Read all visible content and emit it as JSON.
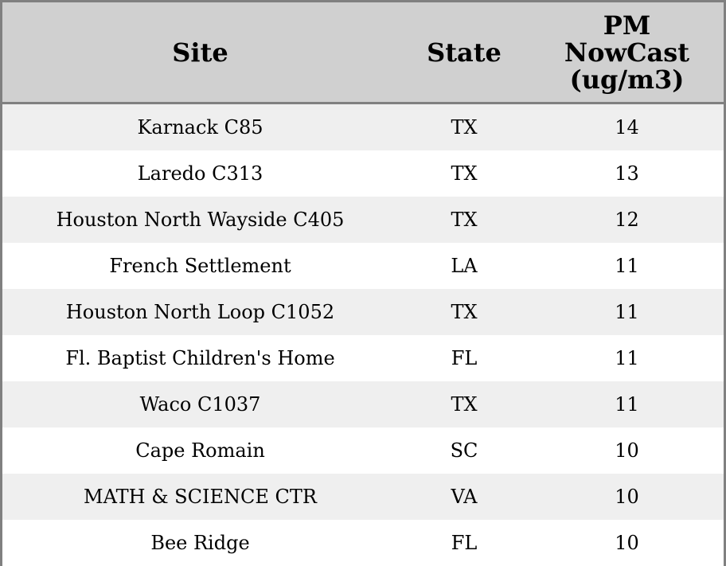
{
  "table": {
    "columns": [
      "Site",
      "State",
      "PM NowCast (ug/m3)"
    ],
    "rows": [
      [
        "Karnack C85",
        "TX",
        14
      ],
      [
        "Laredo C313",
        "TX",
        13
      ],
      [
        "Houston North Wayside C405",
        "TX",
        12
      ],
      [
        "French Settlement",
        "LA",
        11
      ],
      [
        "Houston North Loop C1052",
        "TX",
        11
      ],
      [
        "Fl. Baptist Children's Home",
        "FL",
        11
      ],
      [
        "Waco C1037",
        "TX",
        11
      ],
      [
        "Cape Romain",
        "SC",
        10
      ],
      [
        "MATH & SCIENCE CTR",
        "VA",
        10
      ],
      [
        "Bee Ridge",
        "FL",
        10
      ]
    ]
  }
}
